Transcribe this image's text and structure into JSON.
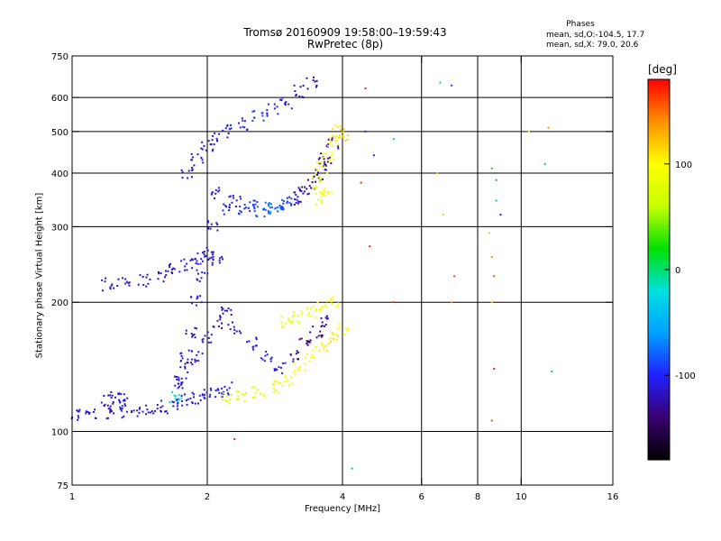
{
  "header": {
    "title_line1": "Tromsø 20160909 19:58:00–19:59:43",
    "title_line2": "RwPretec (8p)",
    "phases_label": "Phases",
    "phase_0_stats": "mean, sd,O:-104.5, 17.7",
    "phase_x_stats": "mean, sd,X: 79.0, 20.6"
  },
  "colorbar": {
    "unit_label": "[deg]",
    "ticks": [
      {
        "label": "100",
        "value": 100
      },
      {
        "label": "0",
        "value": 0
      },
      {
        "label": "-100",
        "value": -100
      }
    ],
    "range": [
      -180,
      180
    ],
    "colors": [
      "#000000",
      "#3a0070",
      "#2020ff",
      "#00a0ff",
      "#00e0e0",
      "#00e000",
      "#c8ff00",
      "#ffff00",
      "#ff9000",
      "#ff0000"
    ]
  },
  "chart_data": {
    "type": "scatter",
    "title": "Tromsø 20160909 19:58:00–19:59:43",
    "subtitle": "RwPretec (8p)",
    "xlabel": "Frequency [MHz]",
    "ylabel": "Stationary phase Virtual Height [km]",
    "x_scale": "log",
    "y_scale": "log",
    "xlim": [
      1,
      16
    ],
    "ylim": [
      75,
      750
    ],
    "x_ticks": [
      {
        "label": "1",
        "value": 1
      },
      {
        "label": "2",
        "value": 2
      },
      {
        "label": "4",
        "value": 4
      },
      {
        "label": "6",
        "value": 6
      },
      {
        "label": "8",
        "value": 8
      },
      {
        "label": "10",
        "value": 10
      },
      {
        "label": "16",
        "value": 16
      }
    ],
    "y_ticks": [
      {
        "label": "75",
        "value": 75
      },
      {
        "label": "100",
        "value": 100
      },
      {
        "label": "200",
        "value": 200
      },
      {
        "label": "300",
        "value": 300
      },
      {
        "label": "400",
        "value": 400
      },
      {
        "label": "500",
        "value": 500
      },
      {
        "label": "600",
        "value": 600
      },
      {
        "label": "750",
        "value": 750
      }
    ],
    "x_grid": [
      2,
      4,
      6,
      8,
      10
    ],
    "y_grid": [
      100,
      200,
      300,
      400,
      500,
      600
    ],
    "color_variable": "phase [deg]",
    "series": [
      {
        "points": [
          [
            1.02,
            110,
            -110
          ],
          [
            1.1,
            110,
            -110
          ],
          [
            1.2,
            110,
            -115
          ],
          [
            1.3,
            111,
            -110
          ],
          [
            1.4,
            112,
            -110
          ],
          [
            1.5,
            113,
            -115
          ],
          [
            1.6,
            114,
            -110
          ],
          [
            1.7,
            116,
            -110
          ],
          [
            1.8,
            118,
            -105
          ],
          [
            1.9,
            120,
            -110
          ],
          [
            2.0,
            122,
            -110
          ],
          [
            2.1,
            124,
            -105
          ],
          [
            2.2,
            126,
            -100
          ]
        ]
      },
      {
        "points": [
          [
            1.2,
            118,
            -120
          ],
          [
            1.25,
            120,
            -115
          ],
          [
            1.3,
            119,
            -110
          ],
          [
            1.7,
            121,
            -15
          ]
        ]
      },
      {
        "points": [
          [
            1.2,
            220,
            -110
          ],
          [
            1.3,
            221,
            -115
          ],
          [
            1.45,
            225,
            -110
          ],
          [
            1.6,
            230,
            -120
          ],
          [
            1.7,
            238,
            -115
          ],
          [
            1.8,
            245,
            -110
          ],
          [
            1.9,
            252,
            -105
          ],
          [
            2.0,
            255,
            -110
          ],
          [
            2.1,
            250,
            -115
          ]
        ]
      },
      {
        "points": [
          [
            1.7,
            130,
            -115
          ],
          [
            1.8,
            140,
            -120
          ],
          [
            1.9,
            150,
            -110
          ],
          [
            2.0,
            165,
            -110
          ],
          [
            2.1,
            180,
            -115
          ],
          [
            2.2,
            190,
            -115
          ],
          [
            2.3,
            175,
            -120
          ],
          [
            2.5,
            160,
            -110
          ],
          [
            2.7,
            150,
            -105
          ],
          [
            2.9,
            140,
            -110
          ],
          [
            3.1,
            150,
            -130
          ],
          [
            3.3,
            160,
            -140
          ],
          [
            3.5,
            170,
            -135
          ],
          [
            3.7,
            180,
            -120
          ]
        ]
      },
      {
        "points": [
          [
            1.75,
            130,
            -115
          ],
          [
            1.8,
            150,
            -110
          ],
          [
            1.85,
            170,
            -120
          ],
          [
            1.9,
            200,
            -105
          ],
          [
            1.95,
            230,
            -110
          ],
          [
            2.0,
            260,
            -115
          ],
          [
            2.05,
            300,
            -110
          ]
        ]
      },
      {
        "points": [
          [
            2.2,
            120,
            70
          ],
          [
            2.4,
            121,
            75
          ],
          [
            2.6,
            123,
            80
          ],
          [
            2.8,
            127,
            85
          ],
          [
            3.0,
            132,
            90
          ],
          [
            3.2,
            140,
            95
          ],
          [
            3.4,
            150,
            100
          ],
          [
            3.6,
            158,
            105
          ],
          [
            3.8,
            165,
            110
          ],
          [
            4.0,
            172,
            100
          ]
        ]
      },
      {
        "points": [
          [
            3.0,
            180,
            80
          ],
          [
            3.2,
            185,
            85
          ],
          [
            3.4,
            190,
            90
          ],
          [
            3.6,
            195,
            95
          ],
          [
            3.8,
            200,
            100
          ]
        ]
      },
      {
        "points": [
          [
            1.8,
            400,
            -120
          ],
          [
            1.9,
            430,
            -115
          ],
          [
            2.0,
            460,
            -110
          ],
          [
            2.1,
            480,
            -110
          ],
          [
            2.2,
            500,
            -105
          ],
          [
            2.4,
            520,
            -100
          ],
          [
            2.6,
            540,
            -90
          ],
          [
            2.8,
            560,
            -100
          ],
          [
            3.0,
            580,
            -110
          ],
          [
            3.2,
            620,
            -120
          ],
          [
            3.4,
            650,
            -130
          ]
        ]
      },
      {
        "points": [
          [
            2.1,
            360,
            -110
          ],
          [
            2.3,
            345,
            -105
          ],
          [
            2.5,
            335,
            -95
          ],
          [
            2.7,
            330,
            -80
          ],
          [
            2.9,
            335,
            -85
          ],
          [
            3.1,
            345,
            -110
          ],
          [
            3.3,
            365,
            -130
          ],
          [
            3.5,
            395,
            -130
          ],
          [
            3.7,
            430,
            -135
          ]
        ]
      },
      {
        "points": [
          [
            2.2,
            330,
            -100
          ],
          [
            2.4,
            328,
            -95
          ],
          [
            2.6,
            325,
            -85
          ],
          [
            2.8,
            330,
            -70
          ],
          [
            3.0,
            338,
            -90
          ],
          [
            3.2,
            352,
            -120
          ],
          [
            3.4,
            380,
            -140
          ],
          [
            3.6,
            420,
            -130
          ],
          [
            3.8,
            470,
            -120
          ]
        ]
      },
      {
        "points": [
          [
            3.5,
            380,
            90
          ],
          [
            3.6,
            410,
            95
          ],
          [
            3.7,
            440,
            100
          ],
          [
            3.8,
            470,
            105
          ],
          [
            3.9,
            500,
            110
          ],
          [
            4.0,
            490,
            115
          ],
          [
            3.6,
            350,
            90
          ],
          [
            3.7,
            360,
            100
          ]
        ]
      },
      {
        "points": [
          [
            4.5,
            630,
            170
          ],
          [
            4.5,
            500,
            -110
          ],
          [
            4.7,
            440,
            -100
          ],
          [
            5.2,
            480,
            -50
          ],
          [
            4.4,
            380,
            170
          ],
          [
            4.6,
            270,
            170
          ],
          [
            5.2,
            200,
            170
          ],
          [
            6.6,
            650,
            10
          ],
          [
            7.0,
            640,
            -90
          ],
          [
            6.5,
            400,
            120
          ],
          [
            6.7,
            320,
            120
          ],
          [
            7.1,
            230,
            160
          ],
          [
            7.0,
            200,
            140
          ],
          [
            8.6,
            410,
            20
          ],
          [
            8.8,
            385,
            -60
          ],
          [
            8.8,
            345,
            -40
          ],
          [
            9.0,
            320,
            -100
          ],
          [
            8.5,
            290,
            120
          ],
          [
            8.6,
            255,
            140
          ],
          [
            8.7,
            230,
            160
          ],
          [
            8.6,
            200,
            120
          ],
          [
            8.7,
            140,
            170
          ],
          [
            8.6,
            106,
            160
          ],
          [
            10.4,
            500,
            100
          ],
          [
            11.5,
            510,
            140
          ],
          [
            11.3,
            420,
            -40
          ],
          [
            11.7,
            138,
            -50
          ],
          [
            4.2,
            82,
            -50
          ],
          [
            2.3,
            96,
            170
          ]
        ]
      }
    ]
  }
}
